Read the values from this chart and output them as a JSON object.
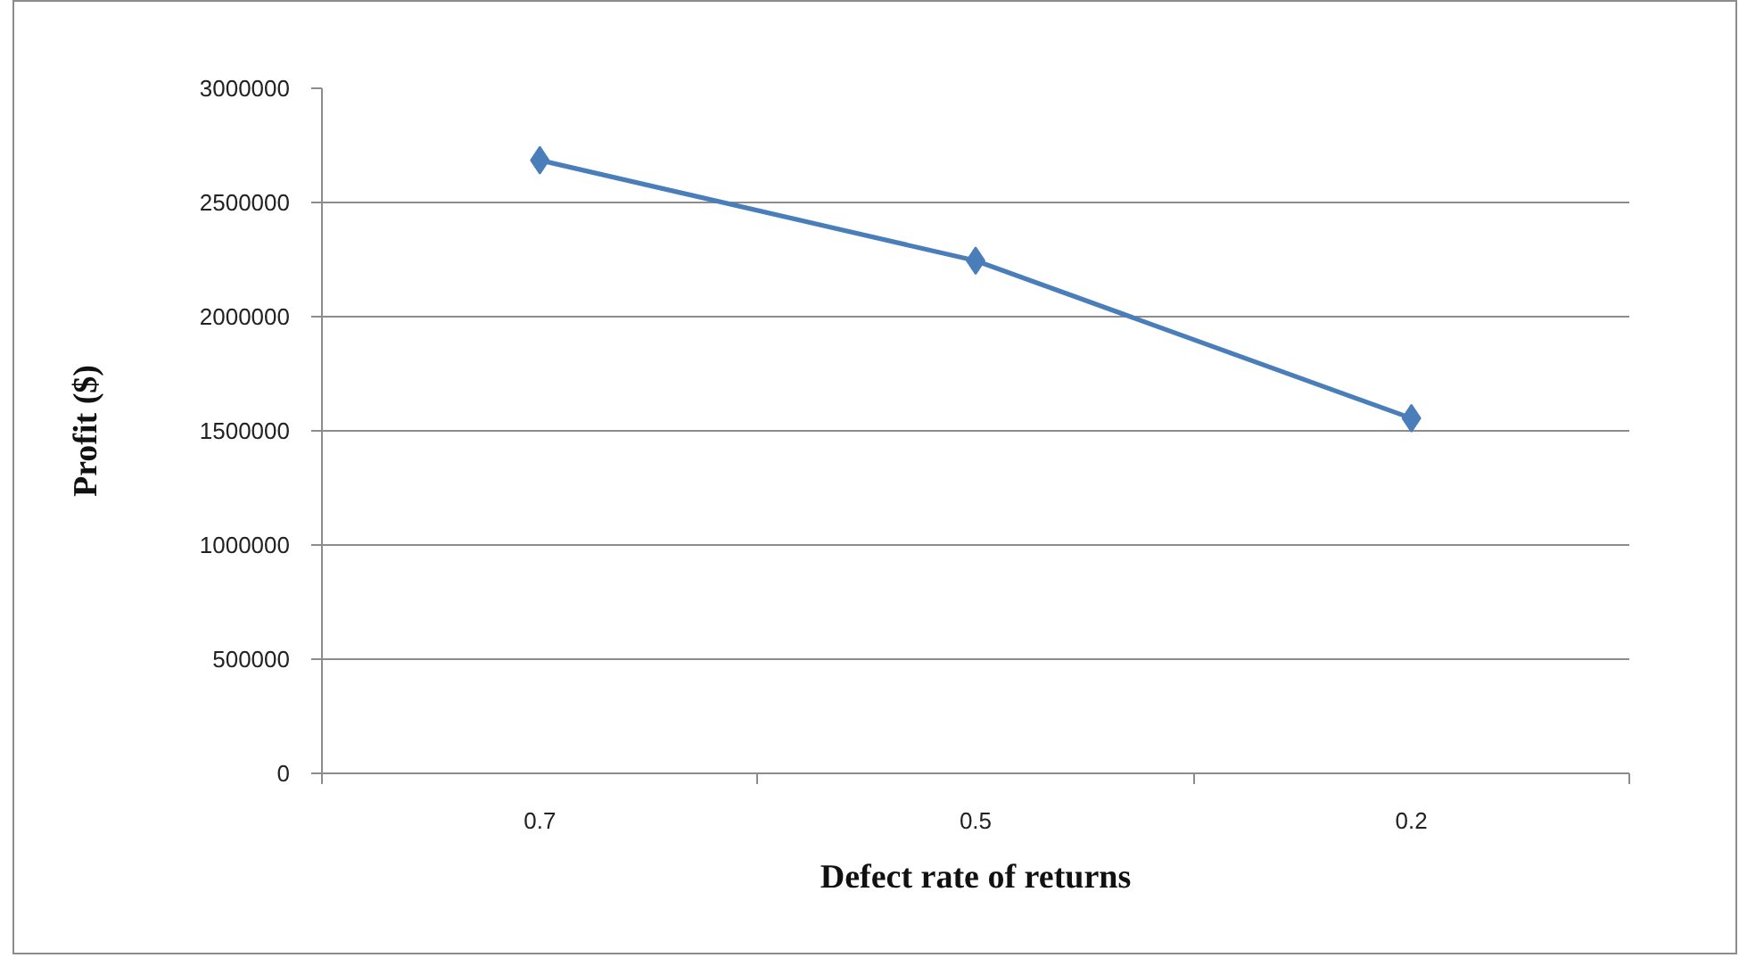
{
  "chart_data": {
    "type": "line",
    "xlabel": "Defect rate of returns",
    "ylabel": "Profit ($)",
    "categories": [
      "0.7",
      "0.5",
      "0.2"
    ],
    "series": [
      {
        "color": "#4a7ebb",
        "values": [
          2685000,
          2245000,
          1555000
        ]
      }
    ],
    "ylim": [
      0,
      3000000
    ],
    "yticks": [
      0,
      500000,
      1000000,
      1500000,
      2000000,
      2500000,
      3000000
    ],
    "grid": "y",
    "marker": "diamond",
    "line_style": "solid"
  }
}
